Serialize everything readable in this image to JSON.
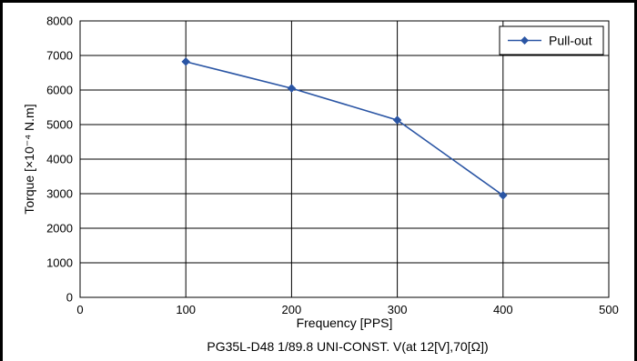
{
  "chart_data": {
    "type": "line",
    "x": [
      100,
      200,
      300,
      400
    ],
    "series": [
      {
        "name": "Pull-out",
        "values": [
          6820,
          6050,
          5130,
          2950
        ]
      }
    ],
    "xlabel": "Frequency [PPS]",
    "ylabel": "Torque [×10⁻⁴ N.m]",
    "xlim": [
      0,
      500
    ],
    "ylim": [
      0,
      8000
    ],
    "xticks": [
      0,
      100,
      200,
      300,
      400,
      500
    ],
    "yticks": [
      0,
      1000,
      2000,
      3000,
      4000,
      5000,
      6000,
      7000,
      8000
    ],
    "grid": true,
    "legend_position": "top-right",
    "caption": "PG35L-D48 1/89.8 UNI-CONST. V(at 12[V],70[Ω])",
    "colors": {
      "series": "#2a55a4",
      "grid": "#000000"
    }
  }
}
